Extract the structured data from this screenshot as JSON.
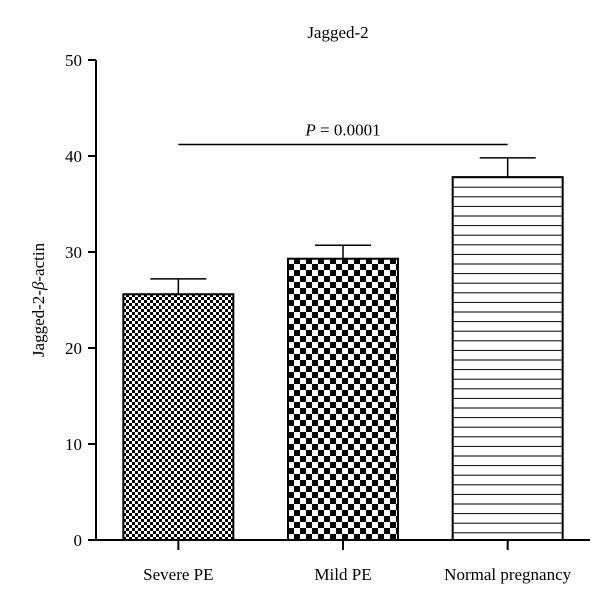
{
  "chart_data": {
    "type": "bar",
    "title": "Jagged-2",
    "xlabel": "",
    "ylabel_prefix": "Jagged-2-",
    "ylabel_symbol": "β",
    "ylabel_suffix": "-actin",
    "categories": [
      "Severe PE",
      "Mild PE",
      "Normal pregnancy"
    ],
    "values": [
      25.6,
      29.3,
      37.8
    ],
    "error_upper": [
      27.2,
      30.7,
      39.8
    ],
    "patterns": [
      "fine-checker",
      "coarse-checker",
      "horizontal-lines"
    ],
    "ylim": [
      0,
      50
    ],
    "yticks": [
      "0",
      "10",
      "20",
      "30",
      "40",
      "50"
    ],
    "annotation": {
      "label_italic": "P",
      "label_rest": " = 0.0001",
      "from_category": 0,
      "to_category": 2,
      "y_value": 41.2
    },
    "grid": false,
    "legend": "none"
  }
}
